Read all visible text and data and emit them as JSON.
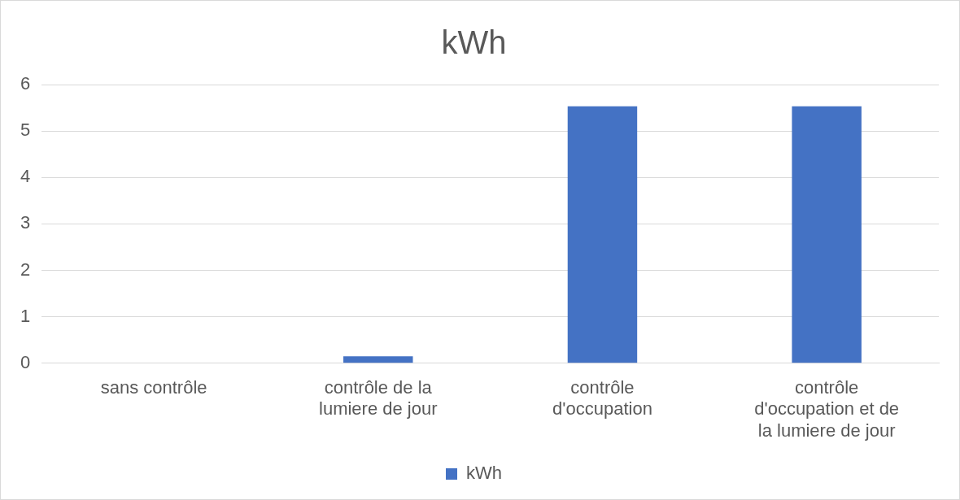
{
  "chart_data": {
    "type": "bar",
    "title": "kWh",
    "categories": [
      "sans contrôle",
      "contrôle de la lumiere de jour",
      "contrôle d'occupation",
      "contrôle d'occupation et de la lumiere de jour"
    ],
    "series": [
      {
        "name": "kWh",
        "color": "#4472c4",
        "values": [
          0,
          0.15,
          5.53,
          5.53
        ]
      }
    ],
    "ylim": [
      0,
      6
    ],
    "yticks": [
      0,
      1,
      2,
      3,
      4,
      5,
      6
    ],
    "grid": "y",
    "legend": "bottom"
  }
}
